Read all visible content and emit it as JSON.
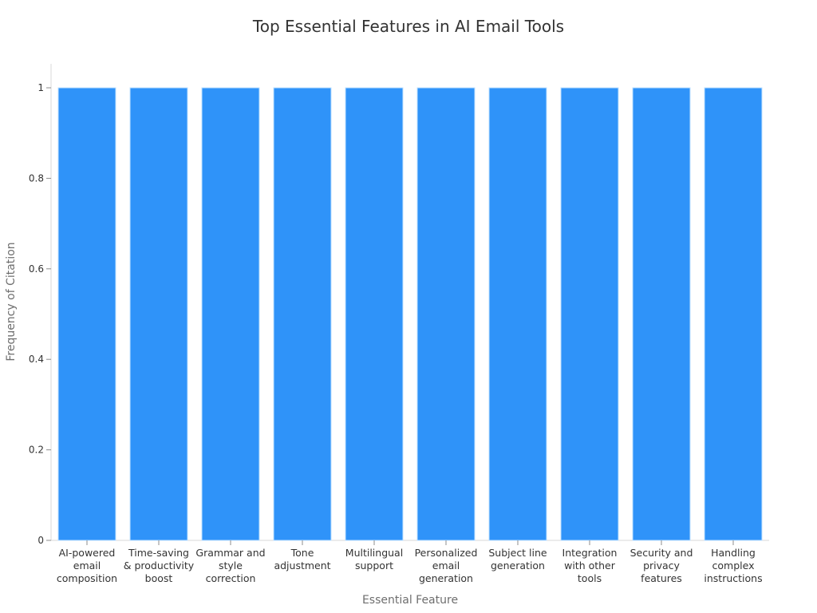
{
  "chart_data": {
    "type": "bar",
    "title": "Top Essential Features in AI Email Tools",
    "xlabel": "Essential Feature",
    "ylabel": "Frequency of Citation",
    "categories": [
      "AI-powered email composition",
      "Time-saving & productivity boost",
      "Grammar and style correction",
      "Tone adjustment",
      "Multilingual support",
      "Personalized email generation",
      "Subject line generation",
      "Integration with other tools",
      "Security and privacy features",
      "Handling complex instructions"
    ],
    "category_label_lines": [
      [
        "AI-powered",
        "email",
        "composition"
      ],
      [
        "Time-saving",
        "& productivity",
        "boost"
      ],
      [
        "Grammar and",
        "style",
        "correction"
      ],
      [
        "Tone",
        "adjustment"
      ],
      [
        "Multilingual",
        "support"
      ],
      [
        "Personalized",
        "email",
        "generation"
      ],
      [
        "Subject line",
        "generation"
      ],
      [
        "Integration",
        "with other",
        "tools"
      ],
      [
        "Security and",
        "privacy",
        "features"
      ],
      [
        "Handling",
        "complex",
        "instructions"
      ]
    ],
    "values": [
      1,
      1,
      1,
      1,
      1,
      1,
      1,
      1,
      1,
      1
    ],
    "ylim": [
      0,
      1.05
    ],
    "yticks": [
      0,
      0.2,
      0.4,
      0.6,
      0.8,
      1
    ],
    "ytick_labels": [
      "0",
      "0.2",
      "0.4",
      "0.6",
      "0.8",
      "1"
    ],
    "grid": false,
    "legend": "none",
    "colors": {
      "bar": "#2f93f9",
      "bar_edge": "#bfe0ff"
    }
  }
}
